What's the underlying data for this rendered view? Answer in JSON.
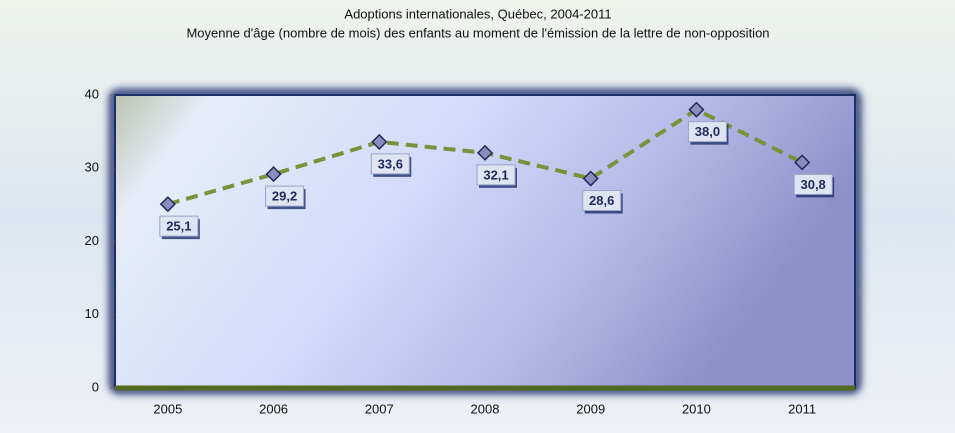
{
  "chart_data": {
    "type": "line",
    "title": "Adoptions internationales, Québec, 2004-2011",
    "subtitle": "Moyenne d'âge (nombre de mois) des enfants au moment de l'émission de la lettre de non-opposition",
    "categories": [
      "2005",
      "2006",
      "2007",
      "2008",
      "2009",
      "2010",
      "2011"
    ],
    "values": [
      25.1,
      29.2,
      33.6,
      32.1,
      28.6,
      38.0,
      30.8
    ],
    "value_labels": [
      "25,1",
      "29,2",
      "33,6",
      "32,1",
      "28,6",
      "38,0",
      "30,8"
    ],
    "color": "#77933c",
    "ylim": [
      0,
      40
    ],
    "yticks": [
      0,
      10,
      20,
      30,
      40
    ]
  }
}
